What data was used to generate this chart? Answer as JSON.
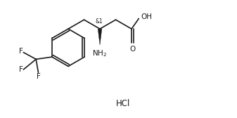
{
  "background_color": "#ffffff",
  "line_color": "#1a1a1a",
  "line_width": 1.2,
  "font_size_atoms": 7.5,
  "font_size_hcl": 8.5,
  "font_size_stereo": 5.5,
  "figsize": [
    3.37,
    1.68
  ],
  "dpi": 100,
  "hcl_text": "HCl",
  "stereo_label": "&1",
  "xlim": [
    0,
    10
  ],
  "ylim": [
    0,
    5
  ]
}
